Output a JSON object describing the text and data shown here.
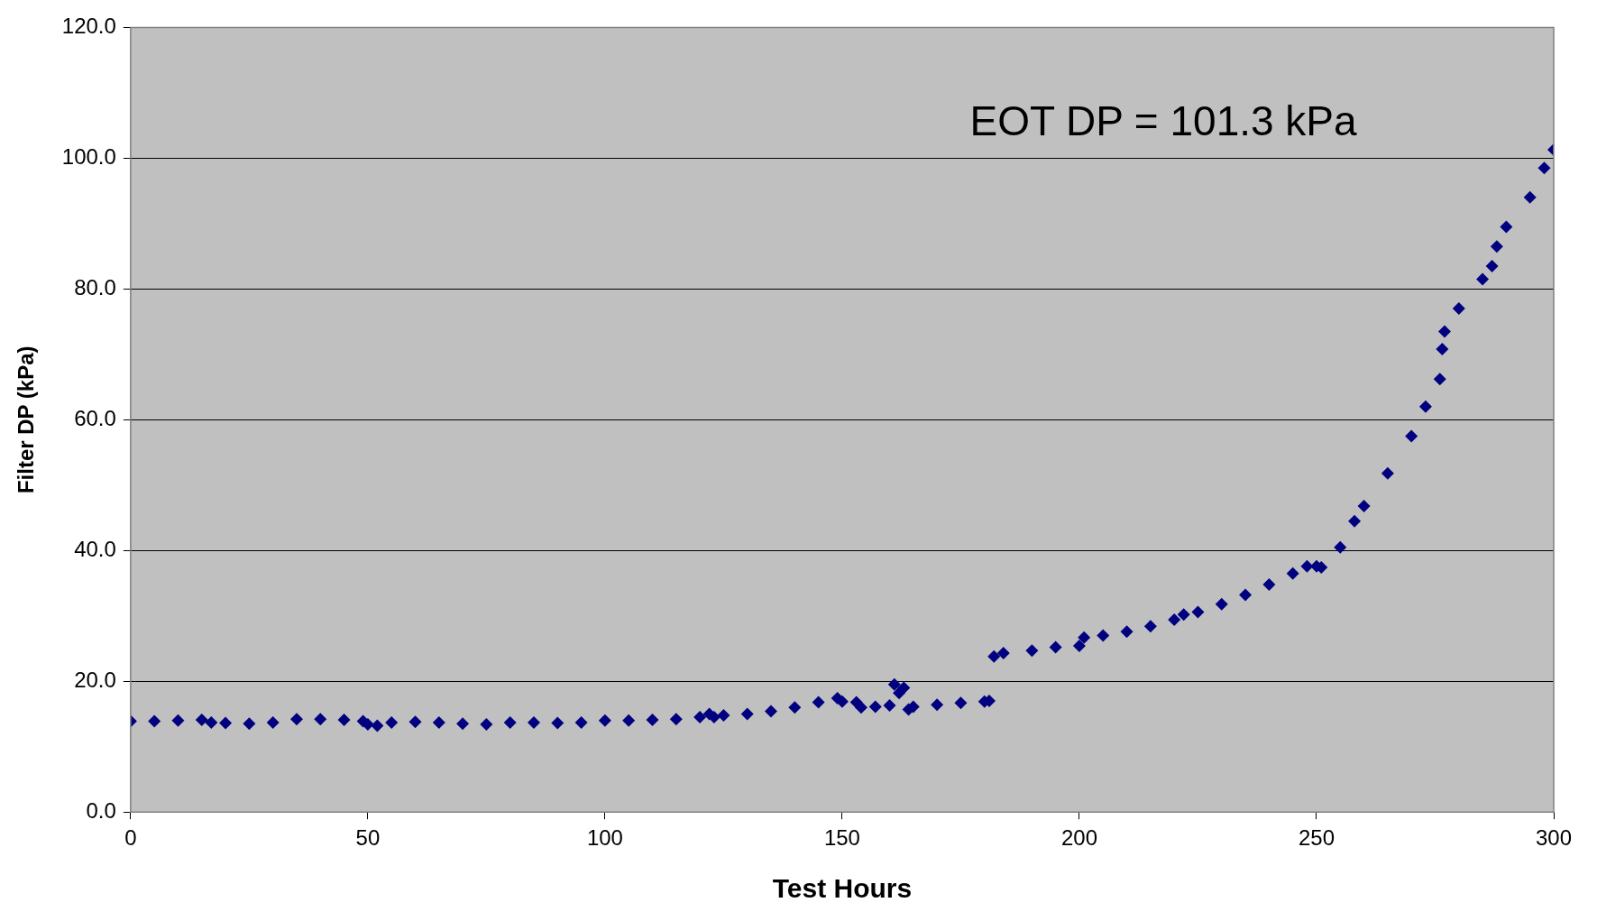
{
  "chart_data": {
    "type": "scatter",
    "xlabel": "Test Hours",
    "ylabel": "Filter DP (kPa)",
    "annotations": [
      "EOT DP = 101.3 kPa"
    ],
    "xlim": [
      0,
      300
    ],
    "xticks": [
      0,
      50,
      100,
      150,
      200,
      250,
      300
    ],
    "ylim": [
      0,
      120
    ],
    "yticks": [
      {
        "value": 0,
        "label": "0.0"
      },
      {
        "value": 20,
        "label": "20.0"
      },
      {
        "value": 40,
        "label": "40.0"
      },
      {
        "value": 60,
        "label": "60.0"
      },
      {
        "value": 80,
        "label": "80.0"
      },
      {
        "value": 100,
        "label": "100.0"
      },
      {
        "value": 120,
        "label": "120.0"
      }
    ],
    "grid": "y",
    "legend": false,
    "marker": "diamond",
    "series": [
      {
        "color": "#000080",
        "x": [
          0,
          5,
          10,
          15,
          17,
          20,
          25,
          30,
          35,
          40,
          45,
          49,
          50,
          52,
          55,
          60,
          65,
          70,
          75,
          80,
          85,
          90,
          95,
          100,
          105,
          110,
          115,
          120,
          122,
          123,
          125,
          130,
          135,
          140,
          145,
          149,
          150,
          153,
          154,
          157,
          160,
          161,
          162,
          163,
          164,
          165,
          170,
          175,
          180,
          181,
          182,
          184,
          190,
          195,
          200,
          201,
          205,
          210,
          215,
          220,
          222,
          225,
          230,
          235,
          240,
          245,
          248,
          250,
          251,
          255,
          258,
          260,
          265,
          270,
          273,
          276,
          276.5,
          277,
          280,
          285,
          287,
          288,
          290,
          295,
          298,
          300
        ],
        "values": [
          13.9,
          13.9,
          14,
          14.1,
          13.7,
          13.6,
          13.5,
          13.7,
          14.2,
          14.2,
          14.1,
          13.9,
          13.4,
          13.2,
          13.7,
          13.8,
          13.7,
          13.5,
          13.4,
          13.7,
          13.7,
          13.6,
          13.7,
          14,
          14,
          14.1,
          14.2,
          14.5,
          15,
          14.5,
          14.8,
          15,
          15.4,
          16,
          16.8,
          17.4,
          16.9,
          16.8,
          16,
          16.1,
          16.3,
          19.5,
          18.2,
          19,
          15.7,
          16.1,
          16.4,
          16.7,
          16.9,
          17,
          23.8,
          24.3,
          24.7,
          25.2,
          25.4,
          26.7,
          27,
          27.6,
          28.4,
          29.4,
          30.2,
          30.6,
          31.8,
          33.2,
          34.8,
          36.5,
          37.6,
          37.6,
          37.4,
          40.5,
          44.5,
          46.8,
          51.8,
          57.5,
          62,
          66.2,
          70.8,
          73.5,
          77,
          81.5,
          83.5,
          86.5,
          89.5,
          94,
          98.5,
          101.3
        ]
      }
    ]
  }
}
